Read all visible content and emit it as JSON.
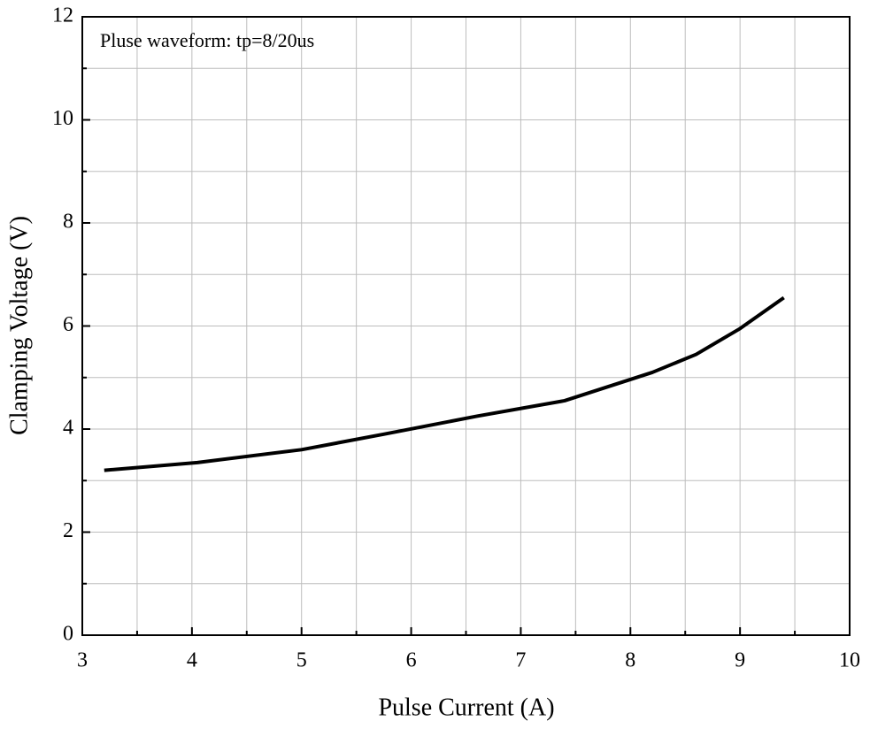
{
  "chart_data": {
    "type": "line",
    "annotation": "Pluse waveform: tp=8/20us",
    "x_label": "Pulse Current (A)",
    "y_label": "Clamping Voltage (V)",
    "series": [
      {
        "name": "Clamping Voltage",
        "color": "#000000",
        "x": [
          3.2,
          4.05,
          5.0,
          5.75,
          6.6,
          7.4,
          8.2,
          8.6,
          9.0,
          9.4
        ],
        "values": [
          3.2,
          3.35,
          3.6,
          3.9,
          4.25,
          4.55,
          5.1,
          5.45,
          5.95,
          6.55
        ]
      }
    ],
    "xlim": [
      3,
      10
    ],
    "xticks": [
      3,
      4,
      5,
      6,
      7,
      8,
      9,
      10
    ],
    "ylim": [
      0,
      12
    ],
    "yticks": [
      0,
      2,
      4,
      6,
      8,
      10,
      12
    ],
    "grid": true,
    "minor_grid": true
  }
}
